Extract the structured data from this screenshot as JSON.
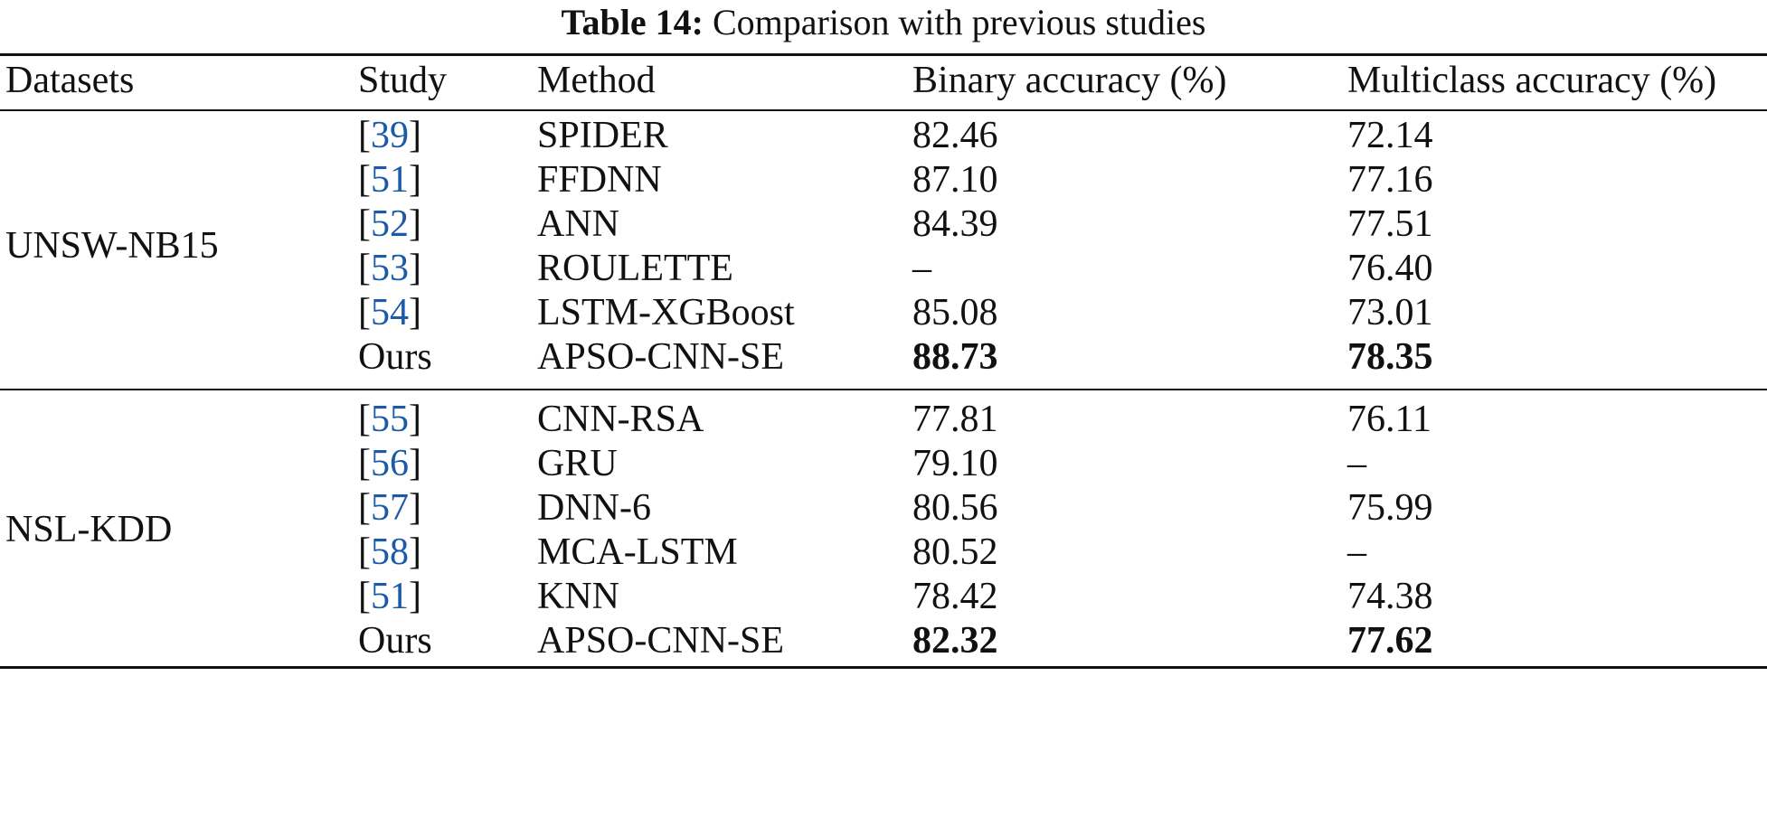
{
  "caption": {
    "label": "Table 14:",
    "text": "Comparison with previous studies"
  },
  "columns": [
    "Datasets",
    "Study",
    "Method",
    "Binary accuracy (%)",
    "Multiclass accuracy (%)"
  ],
  "groups": [
    {
      "dataset": "UNSW-NB15",
      "rows": [
        {
          "ref": "39",
          "method": "SPIDER",
          "binary": "82.46",
          "multi": "72.14",
          "bold": false
        },
        {
          "ref": "51",
          "method": "FFDNN",
          "binary": "87.10",
          "multi": "77.16",
          "bold": false
        },
        {
          "ref": "52",
          "method": "ANN",
          "binary": "84.39",
          "multi": "77.51",
          "bold": false
        },
        {
          "ref": "53",
          "method": "ROULETTE",
          "binary": "–",
          "multi": "76.40",
          "bold": false
        },
        {
          "ref": "54",
          "method": "LSTM-XGBoost",
          "binary": "85.08",
          "multi": "73.01",
          "bold": false
        },
        {
          "study": "Ours",
          "method": "APSO-CNN-SE",
          "binary": "88.73",
          "multi": "78.35",
          "bold": true
        }
      ]
    },
    {
      "dataset": "NSL-KDD",
      "rows": [
        {
          "ref": "55",
          "method": "CNN-RSA",
          "binary": "77.81",
          "multi": "76.11",
          "bold": false
        },
        {
          "ref": "56",
          "method": "GRU",
          "binary": "79.10",
          "multi": "–",
          "bold": false
        },
        {
          "ref": "57",
          "method": "DNN-6",
          "binary": "80.56",
          "multi": "75.99",
          "bold": false
        },
        {
          "ref": "58",
          "method": "MCA-LSTM",
          "binary": "80.52",
          "multi": "–",
          "bold": false
        },
        {
          "ref": "51",
          "method": "KNN",
          "binary": "78.42",
          "multi": "74.38",
          "bold": false
        },
        {
          "study": "Ours",
          "method": "APSO-CNN-SE",
          "binary": "82.32",
          "multi": "77.62",
          "bold": true
        }
      ]
    }
  ]
}
